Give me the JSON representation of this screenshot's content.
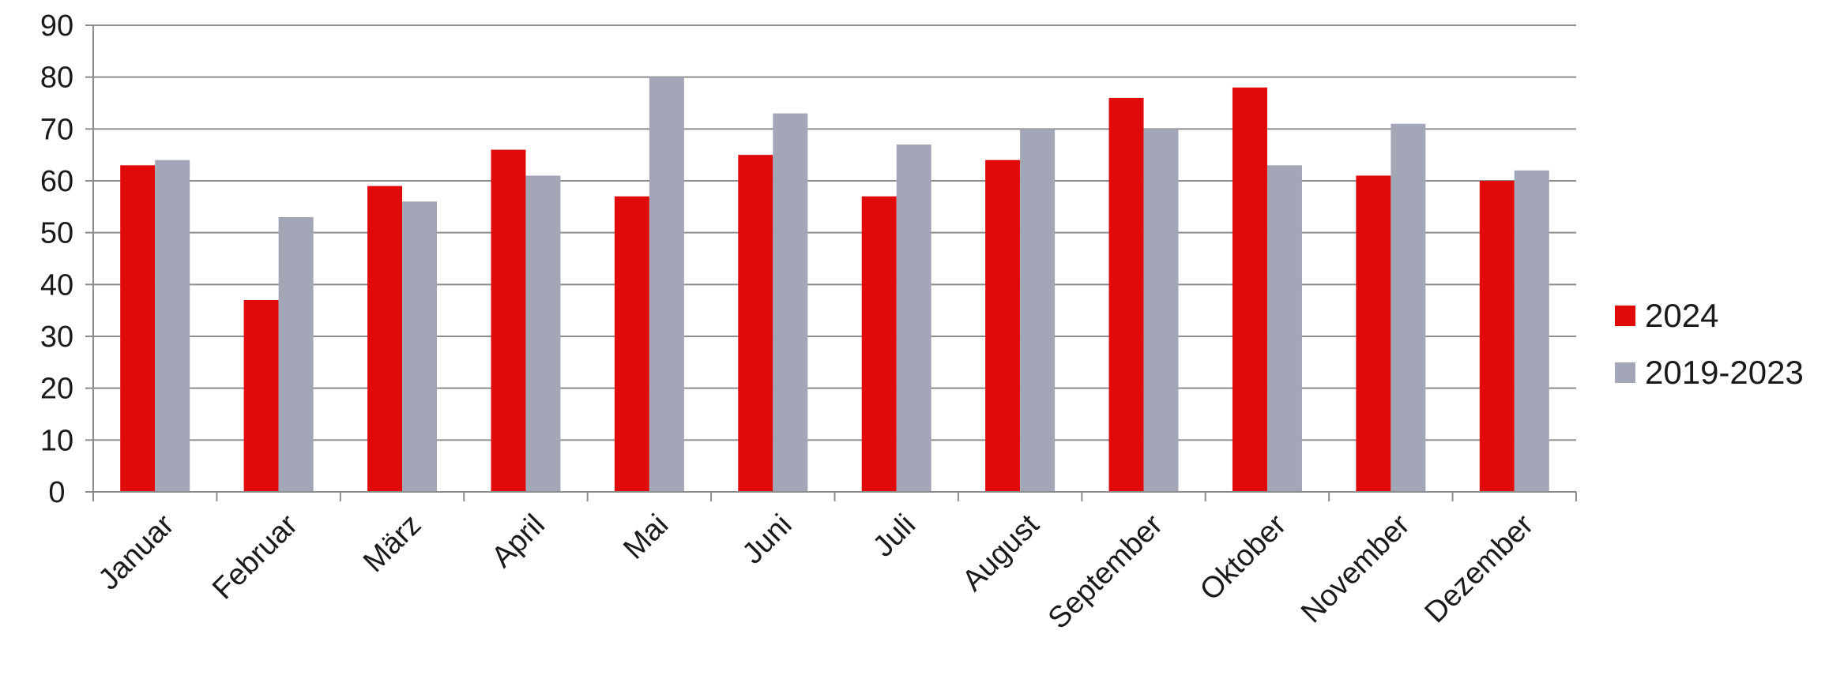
{
  "chart_data": {
    "type": "bar",
    "categories": [
      "Januar",
      "Februar",
      "März",
      "April",
      "Mai",
      "Juni",
      "Juli",
      "August",
      "September",
      "Oktober",
      "November",
      "Dezember"
    ],
    "series": [
      {
        "name": "2024",
        "color": "#e10a0a",
        "values": [
          63,
          37,
          59,
          66,
          57,
          65,
          57,
          64,
          76,
          78,
          61,
          60
        ]
      },
      {
        "name": "2019-2023",
        "color": "#a3a6b6",
        "values": [
          64,
          53,
          56,
          61,
          80,
          73,
          67,
          70,
          70,
          63,
          71,
          62
        ]
      }
    ],
    "title": "",
    "xlabel": "",
    "ylabel": "",
    "ylim": [
      0,
      90
    ],
    "yticks": [
      0,
      10,
      20,
      30,
      40,
      50,
      60,
      70,
      80,
      90
    ],
    "grid": true,
    "legend_position": "right",
    "x_tick_rotation": "diagonal"
  }
}
